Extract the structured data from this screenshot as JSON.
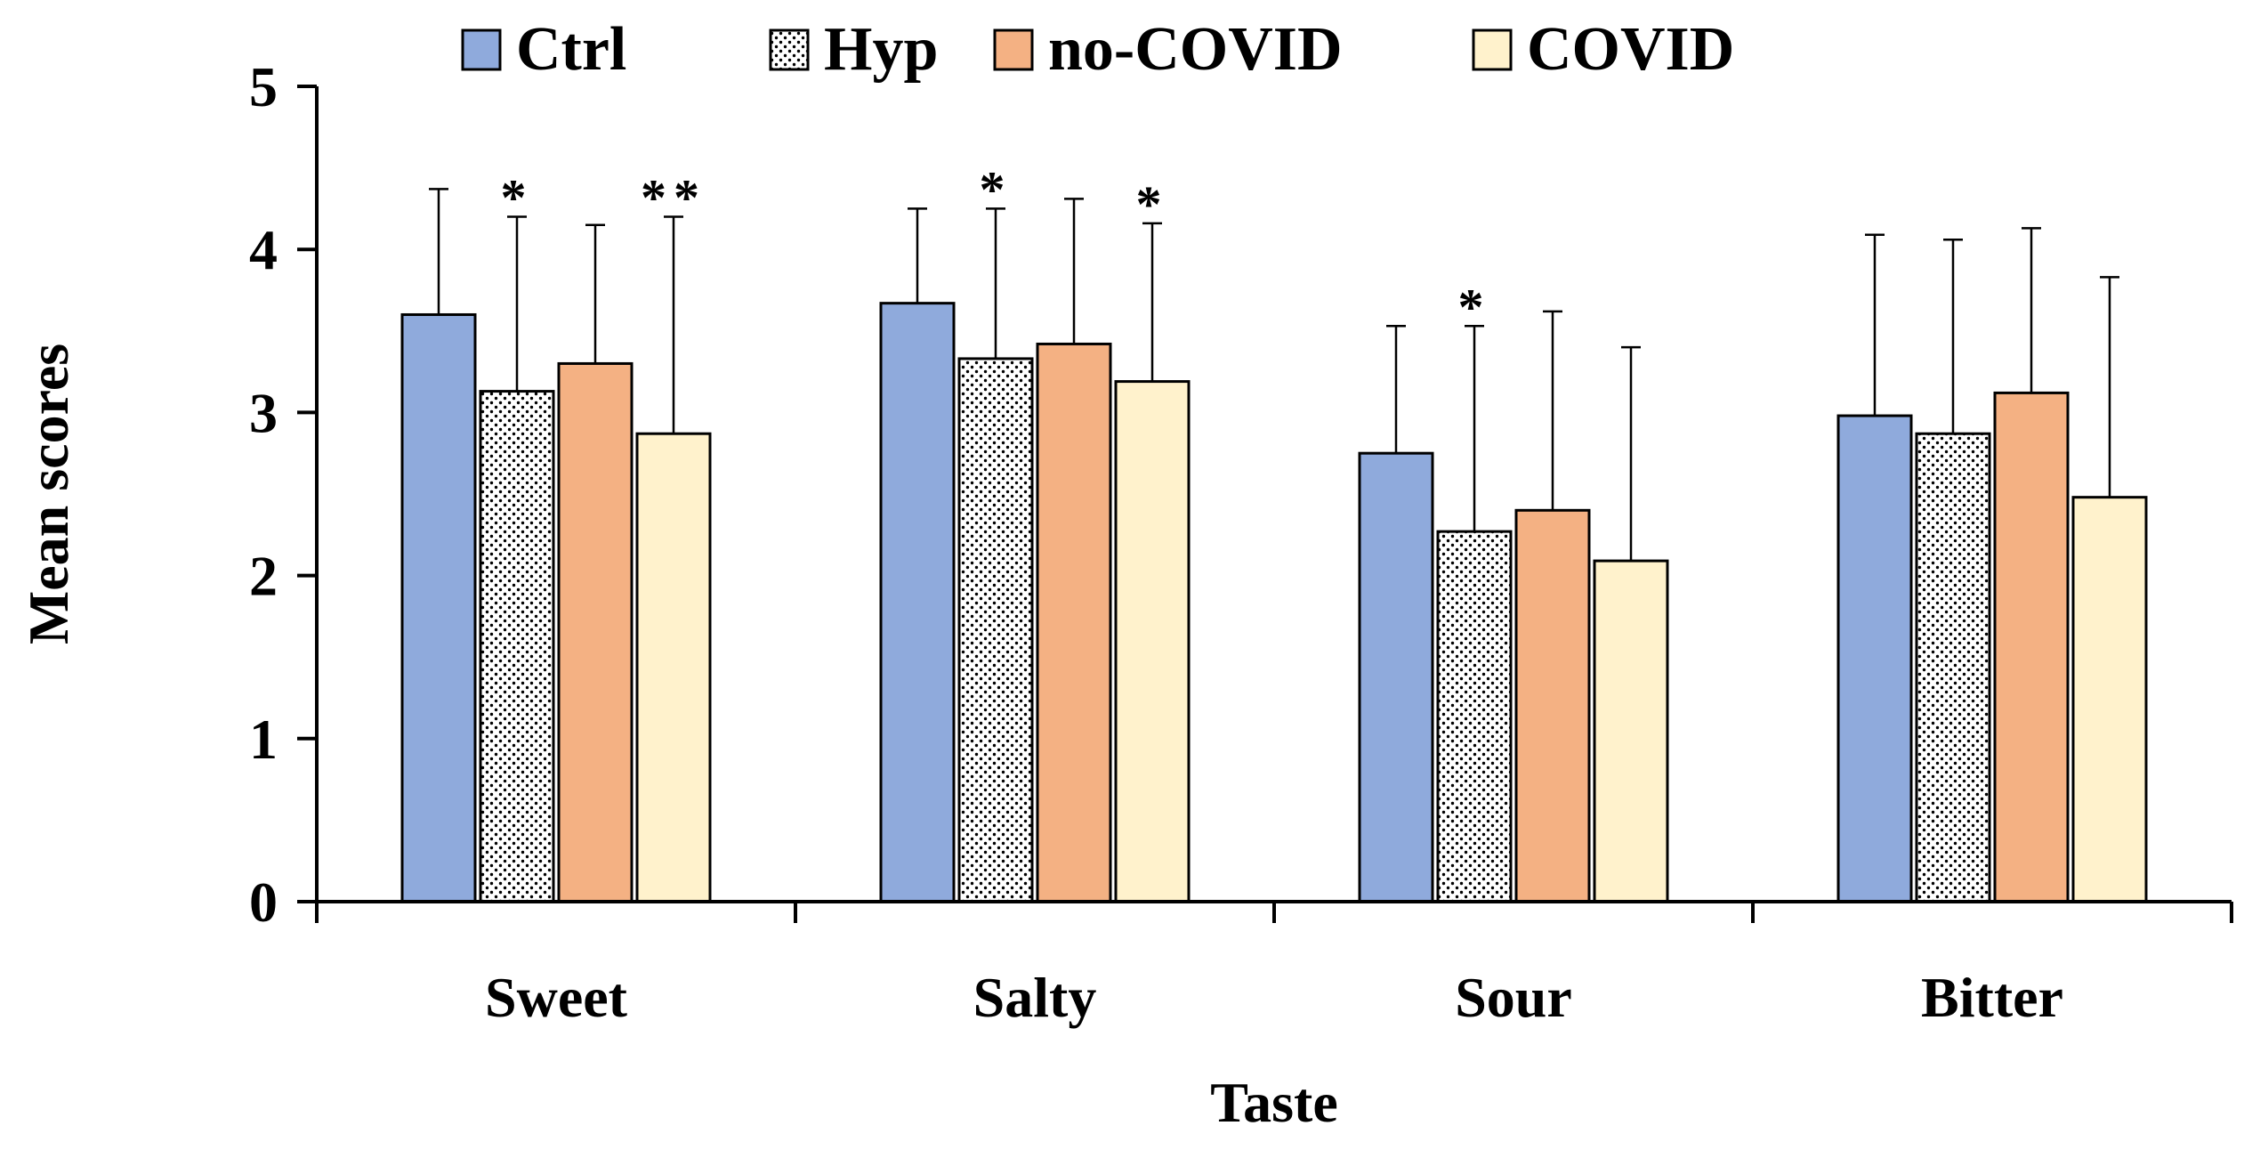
{
  "chart_data": {
    "type": "bar",
    "title": "",
    "xlabel": "Taste",
    "ylabel": "Mean scores",
    "ylim": [
      0,
      5
    ],
    "yticks": [
      "0",
      "1",
      "2",
      "3",
      "4",
      "5"
    ],
    "grid": false,
    "legend_position": "top",
    "categories": [
      "Sweet",
      "Salty",
      "Sour",
      "Bitter"
    ],
    "series": [
      {
        "name": "Ctrl",
        "color": "#8faadc",
        "pattern": "solid",
        "values": [
          3.6,
          3.67,
          2.75,
          2.98
        ],
        "err_upper": [
          4.37,
          4.25,
          3.53,
          4.09
        ],
        "marks": [
          "",
          "",
          "",
          ""
        ]
      },
      {
        "name": "Hyp",
        "color": "#ffffff",
        "pattern": "dotted",
        "values": [
          3.13,
          3.33,
          2.27,
          2.87
        ],
        "err_upper": [
          4.2,
          4.25,
          3.53,
          4.06
        ],
        "marks": [
          "*",
          "*",
          "*",
          ""
        ]
      },
      {
        "name": "no-COVID",
        "color": "#f4b183",
        "pattern": "solid",
        "values": [
          3.3,
          3.42,
          2.4,
          3.12
        ],
        "err_upper": [
          4.15,
          4.31,
          3.62,
          4.13
        ],
        "marks": [
          "",
          "",
          "",
          ""
        ]
      },
      {
        "name": "COVID",
        "color": "#fff2cc",
        "pattern": "solid",
        "values": [
          2.87,
          3.19,
          2.09,
          2.48
        ],
        "err_upper": [
          4.2,
          4.16,
          3.4,
          3.83
        ],
        "marks": [
          "**",
          "*",
          "",
          ""
        ]
      }
    ]
  }
}
